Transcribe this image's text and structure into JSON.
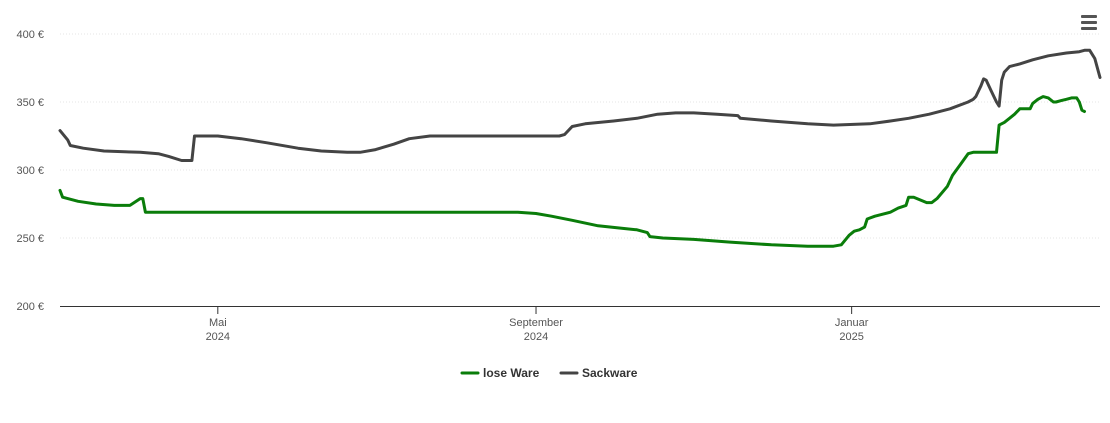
{
  "colors": {
    "lose_ware": "#0a7d0a",
    "sackware": "#444444",
    "grid": "#e6e6e6",
    "axis": "#333333"
  },
  "menu": {
    "icon": "hamburger-menu-icon"
  },
  "chart_data": {
    "type": "line",
    "title": "",
    "xlabel": "",
    "ylabel": "",
    "ylim": [
      200,
      400
    ],
    "xlim": [
      "2024-03-01",
      "2025-03-31"
    ],
    "yticks": [
      {
        "value": 200,
        "label": "200 €"
      },
      {
        "value": 250,
        "label": "250 €"
      },
      {
        "value": 300,
        "label": "300 €"
      },
      {
        "value": 350,
        "label": "350 €"
      },
      {
        "value": 400,
        "label": "400 €"
      }
    ],
    "xticks": [
      {
        "date": "2024-05-01",
        "month": "Mai",
        "year": "2024"
      },
      {
        "date": "2024-09-01",
        "month": "September",
        "year": "2024"
      },
      {
        "date": "2025-01-01",
        "month": "Januar",
        "year": "2025"
      }
    ],
    "grid": true,
    "legend_position": "bottom-center",
    "series": [
      {
        "name": "lose Ware",
        "points": [
          [
            "2024-03-01",
            285
          ],
          [
            "2024-03-02",
            280
          ],
          [
            "2024-03-08",
            277
          ],
          [
            "2024-03-15",
            275
          ],
          [
            "2024-03-22",
            274
          ],
          [
            "2024-03-28",
            274
          ],
          [
            "2024-04-01",
            279
          ],
          [
            "2024-04-02",
            279
          ],
          [
            "2024-04-03",
            269
          ],
          [
            "2024-05-01",
            269
          ],
          [
            "2024-06-15",
            269
          ],
          [
            "2024-08-01",
            269
          ],
          [
            "2024-08-25",
            269
          ],
          [
            "2024-09-01",
            268
          ],
          [
            "2024-09-07",
            266
          ],
          [
            "2024-09-15",
            263
          ],
          [
            "2024-09-25",
            259
          ],
          [
            "2024-10-05",
            257
          ],
          [
            "2024-10-10",
            256
          ],
          [
            "2024-10-14",
            254
          ],
          [
            "2024-10-15",
            251
          ],
          [
            "2024-10-20",
            250
          ],
          [
            "2024-11-01",
            249
          ],
          [
            "2024-11-15",
            247
          ],
          [
            "2024-12-01",
            245
          ],
          [
            "2024-12-15",
            244
          ],
          [
            "2024-12-25",
            244
          ],
          [
            "2024-12-28",
            245
          ],
          [
            "2024-12-31",
            252
          ],
          [
            "2025-01-02",
            255
          ],
          [
            "2025-01-04",
            256
          ],
          [
            "2025-01-06",
            258
          ],
          [
            "2025-01-07",
            264
          ],
          [
            "2025-01-10",
            266
          ],
          [
            "2025-01-16",
            269
          ],
          [
            "2025-01-19",
            272
          ],
          [
            "2025-01-22",
            274
          ],
          [
            "2025-01-23",
            280
          ],
          [
            "2025-01-25",
            280
          ],
          [
            "2025-01-30",
            276
          ],
          [
            "2025-02-01",
            276
          ],
          [
            "2025-02-03",
            279
          ],
          [
            "2025-02-07",
            288
          ],
          [
            "2025-02-09",
            296
          ],
          [
            "2025-02-12",
            304
          ],
          [
            "2025-02-15",
            312
          ],
          [
            "2025-02-17",
            313
          ],
          [
            "2025-02-25",
            313
          ],
          [
            "2025-02-26",
            313
          ],
          [
            "2025-02-27",
            333
          ],
          [
            "2025-03-01",
            335
          ],
          [
            "2025-03-03",
            338
          ],
          [
            "2025-03-05",
            341
          ],
          [
            "2025-03-07",
            345
          ],
          [
            "2025-03-11",
            345
          ],
          [
            "2025-03-12",
            349
          ],
          [
            "2025-03-14",
            352
          ],
          [
            "2025-03-16",
            354
          ],
          [
            "2025-03-18",
            353
          ],
          [
            "2025-03-20",
            350
          ],
          [
            "2025-03-21",
            350
          ],
          [
            "2025-03-23",
            351
          ],
          [
            "2025-03-25",
            352
          ],
          [
            "2025-03-27",
            353
          ],
          [
            "2025-03-29",
            353
          ],
          [
            "2025-03-30",
            350
          ],
          [
            "2025-03-31",
            344
          ],
          [
            "2025-04-01",
            343
          ]
        ]
      },
      {
        "name": "Sackware",
        "points": [
          [
            "2024-03-01",
            329
          ],
          [
            "2024-03-04",
            322
          ],
          [
            "2024-03-05",
            318
          ],
          [
            "2024-03-10",
            316
          ],
          [
            "2024-03-18",
            314
          ],
          [
            "2024-04-01",
            313
          ],
          [
            "2024-04-08",
            312
          ],
          [
            "2024-04-12",
            310
          ],
          [
            "2024-04-17",
            307
          ],
          [
            "2024-04-21",
            307
          ],
          [
            "2024-04-22",
            325
          ],
          [
            "2024-05-01",
            325
          ],
          [
            "2024-05-10",
            323
          ],
          [
            "2024-05-20",
            320
          ],
          [
            "2024-06-01",
            316
          ],
          [
            "2024-06-10",
            314
          ],
          [
            "2024-06-20",
            313
          ],
          [
            "2024-06-25",
            313
          ],
          [
            "2024-07-01",
            315
          ],
          [
            "2024-07-08",
            319
          ],
          [
            "2024-07-14",
            323
          ],
          [
            "2024-07-22",
            325
          ],
          [
            "2024-08-01",
            325
          ],
          [
            "2024-09-01",
            325
          ],
          [
            "2024-09-10",
            325
          ],
          [
            "2024-09-12",
            326
          ],
          [
            "2024-09-15",
            332
          ],
          [
            "2024-09-20",
            334
          ],
          [
            "2024-10-01",
            336
          ],
          [
            "2024-10-10",
            338
          ],
          [
            "2024-10-18",
            341
          ],
          [
            "2024-10-25",
            342
          ],
          [
            "2024-11-01",
            342
          ],
          [
            "2024-11-10",
            341
          ],
          [
            "2024-11-18",
            340
          ],
          [
            "2024-11-19",
            338
          ],
          [
            "2024-12-01",
            336
          ],
          [
            "2024-12-15",
            334
          ],
          [
            "2024-12-25",
            333
          ],
          [
            "2025-01-08",
            334
          ],
          [
            "2025-01-16",
            336
          ],
          [
            "2025-01-23",
            338
          ],
          [
            "2025-01-31",
            341
          ],
          [
            "2025-02-08",
            345
          ],
          [
            "2025-02-15",
            350
          ],
          [
            "2025-02-17",
            352
          ],
          [
            "2025-02-18",
            354
          ],
          [
            "2025-02-20",
            362
          ],
          [
            "2025-02-21",
            367
          ],
          [
            "2025-02-22",
            366
          ],
          [
            "2025-02-24",
            358
          ],
          [
            "2025-02-26",
            350
          ],
          [
            "2025-02-27",
            347
          ],
          [
            "2025-02-28",
            366
          ],
          [
            "2025-03-01",
            372
          ],
          [
            "2025-03-03",
            376
          ],
          [
            "2025-03-07",
            378
          ],
          [
            "2025-03-12",
            381
          ],
          [
            "2025-03-18",
            384
          ],
          [
            "2025-03-25",
            386
          ],
          [
            "2025-03-30",
            387
          ],
          [
            "2025-04-01",
            388
          ],
          [
            "2025-04-03",
            388
          ],
          [
            "2025-04-05",
            382
          ],
          [
            "2025-04-07",
            368
          ]
        ]
      }
    ]
  }
}
